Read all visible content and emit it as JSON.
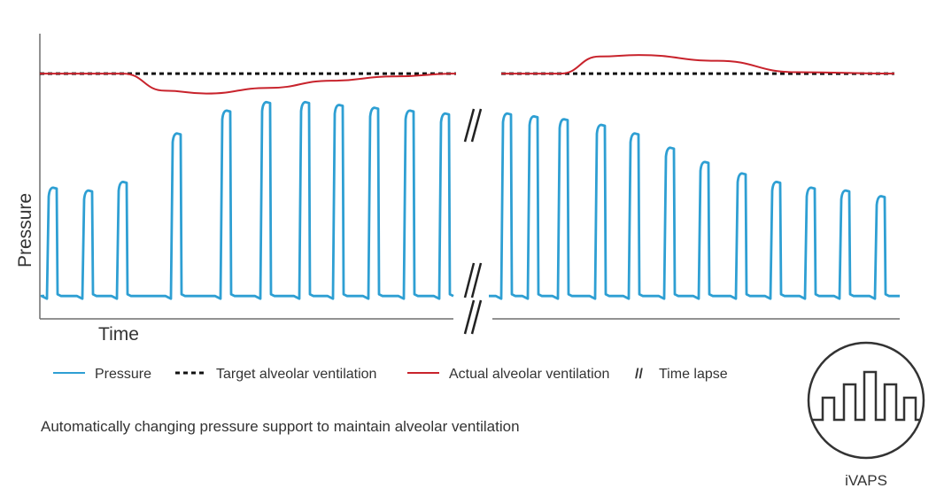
{
  "chart_data": {
    "type": "line",
    "title": "",
    "xlabel": "Time",
    "ylabel": "Pressure",
    "ylim": [
      0,
      100
    ],
    "grid": false,
    "legend": "bottom",
    "series": [
      {
        "name": "Pressure",
        "color": "#2e9fd3",
        "segments": [
          {
            "baseline": 8,
            "peaks": [
              46,
              45,
              48,
              65,
              73,
              76,
              76,
              75,
              74,
              73,
              72
            ]
          },
          {
            "baseline": 8,
            "peaks": [
              72,
              71,
              70,
              68,
              65,
              60,
              55,
              51,
              48,
              46,
              45,
              43
            ]
          }
        ]
      },
      {
        "name": "Target alveolar ventilation",
        "color": "#111111",
        "value": 86
      },
      {
        "name": "Actual alveolar ventilation",
        "color": "#c8232c",
        "segments": [
          {
            "x": [
              0,
              20,
              30,
              40,
              55,
              70,
              85,
              100
            ],
            "y": [
              86,
              86,
              80,
              79,
              81,
              83.5,
              85,
              86
            ]
          },
          {
            "x": [
              0,
              15,
              25,
              35,
              55,
              75,
              100
            ],
            "y": [
              86,
              86,
              92,
              92.5,
              90.5,
              86.5,
              86
            ]
          }
        ]
      }
    ],
    "annotations": {
      "time_lapse_symbol": "//"
    }
  },
  "legend": {
    "items": [
      {
        "label": "Pressure",
        "style": "solid",
        "color": "#2e9fd3"
      },
      {
        "label": "Target alveolar ventilation",
        "style": "dotted",
        "color": "#111111"
      },
      {
        "label": "Actual alveolar ventilation",
        "style": "solid",
        "color": "#c8232c"
      },
      {
        "label": "Time lapse",
        "style": "slash",
        "symbol": "//"
      }
    ]
  },
  "caption": "Automatically changing pressure support to maintain alveolar ventilation",
  "badge": {
    "label": "iVAPS",
    "icon": "ivaps-waveform-icon"
  }
}
